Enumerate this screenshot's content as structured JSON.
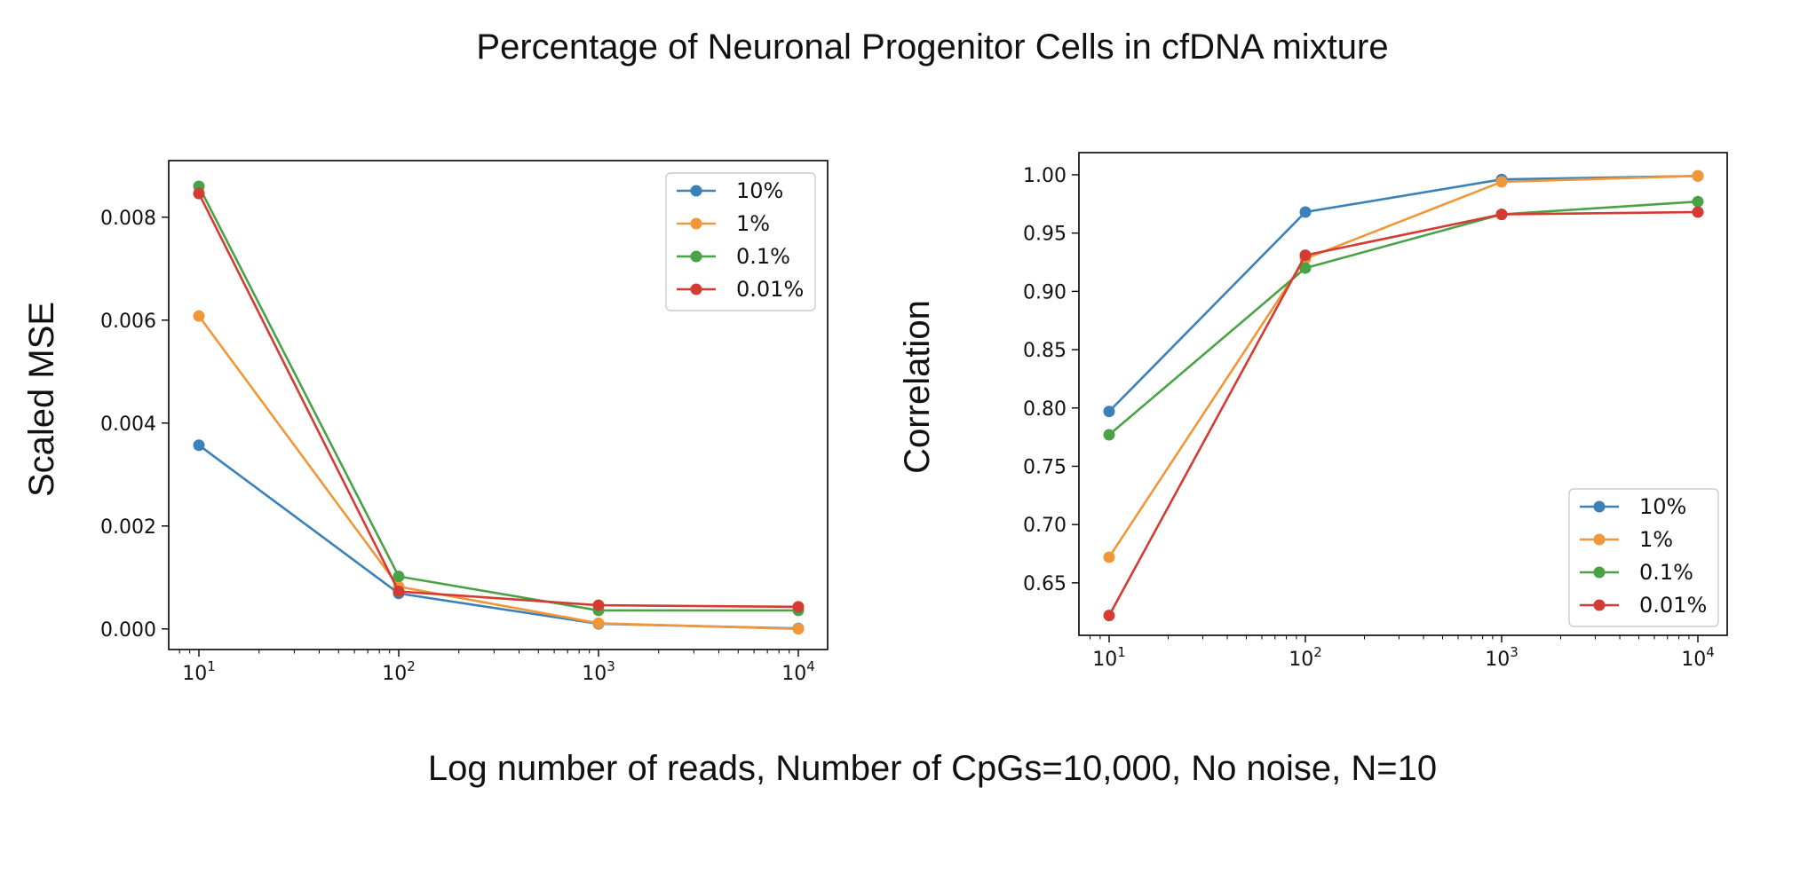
{
  "figure": {
    "title": "Percentage of Neuronal Progenitor Cells in cfDNA mixture",
    "xlabel": "Log number of reads, Number of CpGs=10,000, No noise, N=10"
  },
  "chart_data": [
    {
      "type": "line",
      "ylabel": "Scaled MSE",
      "xscale": "log",
      "x": [
        10,
        100,
        1000,
        10000
      ],
      "xticks": [
        {
          "base": "10",
          "exp": "1"
        },
        {
          "base": "10",
          "exp": "2"
        },
        {
          "base": "10",
          "exp": "3"
        },
        {
          "base": "10",
          "exp": "4"
        }
      ],
      "ylim": [
        -0.0004,
        0.0091
      ],
      "yticks": [
        "0.000",
        "0.002",
        "0.004",
        "0.006",
        "0.008"
      ],
      "legend": "top-right",
      "series": [
        {
          "name": "10%",
          "color": "#3a81b9",
          "values": [
            0.00357,
            0.00069,
            0.0001,
            1e-05
          ]
        },
        {
          "name": "1%",
          "color": "#f0973a",
          "values": [
            0.00608,
            0.00082,
            0.00011,
            0.0
          ]
        },
        {
          "name": "0.1%",
          "color": "#4aa246",
          "values": [
            0.0086,
            0.00102,
            0.00036,
            0.00036
          ]
        },
        {
          "name": "0.01%",
          "color": "#d43c33",
          "values": [
            0.00846,
            0.00073,
            0.00046,
            0.00043
          ]
        }
      ]
    },
    {
      "type": "line",
      "ylabel": "Correlation",
      "xscale": "log",
      "x": [
        10,
        100,
        1000,
        10000
      ],
      "xticks": [
        {
          "base": "10",
          "exp": "1"
        },
        {
          "base": "10",
          "exp": "2"
        },
        {
          "base": "10",
          "exp": "3"
        },
        {
          "base": "10",
          "exp": "4"
        }
      ],
      "ylim": [
        0.605,
        1.019
      ],
      "yticks": [
        "0.65",
        "0.70",
        "0.75",
        "0.80",
        "0.85",
        "0.90",
        "0.95",
        "1.00"
      ],
      "legend": "bottom-right",
      "series": [
        {
          "name": "10%",
          "color": "#3a81b9",
          "values": [
            0.797,
            0.968,
            0.996,
            0.999
          ]
        },
        {
          "name": "1%",
          "color": "#f0973a",
          "values": [
            0.672,
            0.928,
            0.994,
            0.999
          ]
        },
        {
          "name": "0.1%",
          "color": "#4aa246",
          "values": [
            0.777,
            0.92,
            0.966,
            0.977
          ]
        },
        {
          "name": "0.01%",
          "color": "#d43c33",
          "values": [
            0.622,
            0.931,
            0.966,
            0.968
          ]
        }
      ]
    }
  ]
}
